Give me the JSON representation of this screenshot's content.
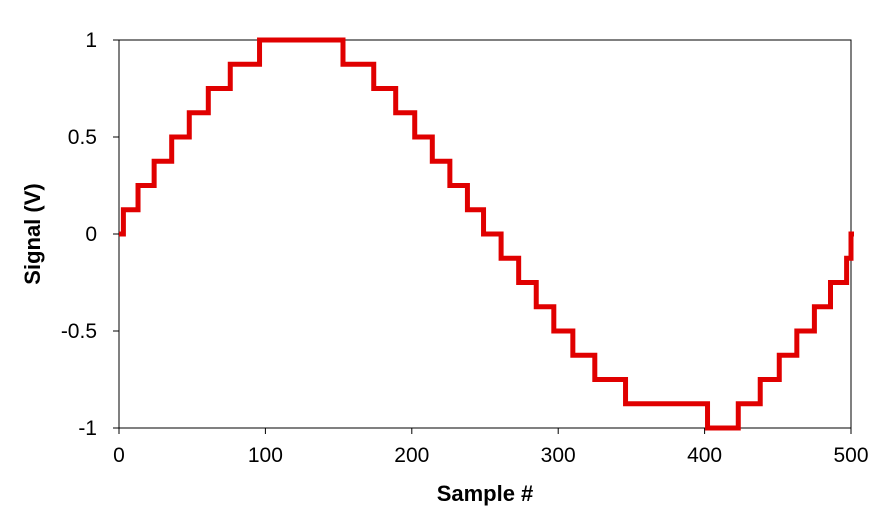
{
  "chart_data": {
    "type": "line",
    "title": "",
    "xlabel": "Sample #",
    "ylabel": "Signal (V)",
    "xlim": [
      0,
      500
    ],
    "ylim": [
      -1,
      1
    ],
    "xticks": [
      0,
      100,
      200,
      300,
      400,
      500
    ],
    "xtick_labels": [
      "0",
      "100",
      "200",
      "300",
      "400",
      "500"
    ],
    "yticks": [
      1,
      0.5,
      0,
      -0.5,
      -1
    ],
    "ytick_labels": [
      "1",
      "0.5",
      "0",
      "-0.5",
      "-1"
    ],
    "grid": false,
    "legend": "none",
    "line_color": "#e00000",
    "step_levels": [
      0,
      0.125,
      0.25,
      0.375,
      0.5,
      0.625,
      0.75,
      0.875,
      1,
      0.875,
      0.75,
      0.625,
      0.5,
      0.375,
      0.25,
      0.125,
      0,
      -0.125,
      -0.25,
      -0.375,
      -0.5,
      -0.625,
      -0.75,
      -0.875,
      -1,
      -0.875,
      -0.75,
      -0.625,
      -0.5,
      -0.375,
      -0.25,
      -0.125,
      0
    ],
    "step_starts": [
      0,
      3,
      13,
      24,
      36,
      48,
      61,
      76,
      96,
      153,
      174,
      189,
      202,
      214,
      226,
      238,
      249,
      261,
      273,
      285,
      297,
      310,
      325,
      346,
      402,
      423,
      438,
      451,
      463,
      475,
      486,
      497,
      500
    ]
  }
}
